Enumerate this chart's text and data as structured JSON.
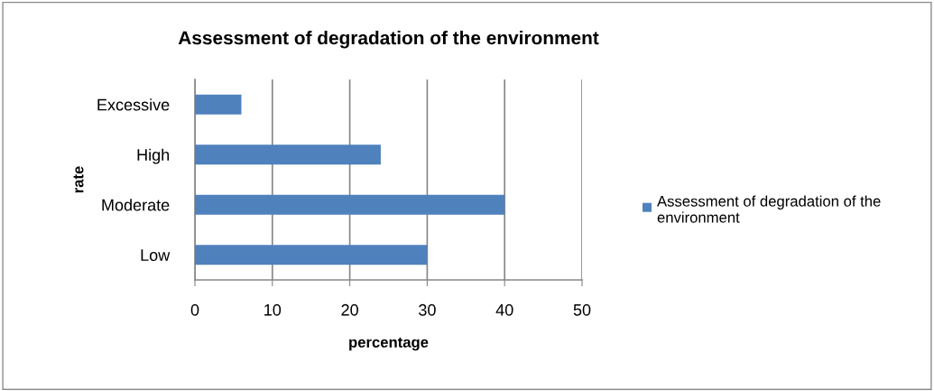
{
  "chart_data": {
    "type": "bar",
    "orientation": "horizontal",
    "title": "Assessment of degradation of the environment",
    "xlabel": "percentage",
    "ylabel": "rate",
    "categories": [
      "Excessive",
      "High",
      "Moderate",
      "Low"
    ],
    "series": [
      {
        "name": "Assessment of degradation of the environment",
        "color": "#4f81bd",
        "values": [
          6,
          24,
          40,
          30
        ]
      }
    ],
    "xlim": [
      0,
      50
    ],
    "xticks": [
      0,
      10,
      20,
      30,
      40,
      50
    ],
    "grid": "x",
    "legend": "right"
  }
}
